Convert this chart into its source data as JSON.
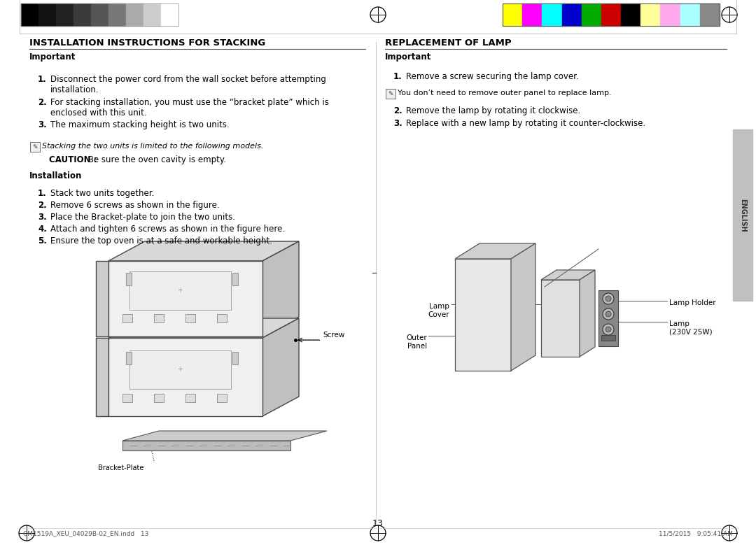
{
  "bg_color": "#ffffff",
  "page_number": "13",
  "footer_left": "CM1519A_XEU_04029B-02_EN.indd   13",
  "footer_right": "11/5/2015   9:05:41 AM",
  "left_section_title": "INSTALLATION INSTRUCTIONS FOR STACKING",
  "right_section_title": "REPLACEMENT OF LAMP",
  "left_important_label": "Important",
  "left_items": [
    "Disconnect the power cord from the wall socket before attempting\ninstallation.",
    "For stacking installation, you must use the “bracket plate” which is\nenclosed with this unit.",
    "The maximum stacking height is two units."
  ],
  "left_note": "Stacking the two units is limited to the following models.",
  "left_caution_bold": "CAUTION :",
  "left_caution_rest": " Be sure the oven cavity is empty.",
  "installation_label": "Installation",
  "install_items": [
    "Stack two units together.",
    "Remove 6 screws as shown in the figure.",
    "Place the Bracket-plate to join the two units.",
    "Attach and tighten 6 screws as shown in the figure here.",
    "Ensure the top oven is at a safe and workable height."
  ],
  "right_important_label": "Important",
  "right_item1": "Remove a screw securing the lamp cover.",
  "right_note": "You don’t need to remove outer panel to replace lamp.",
  "right_item2": "Remove the lamp by rotating it clockwise.",
  "right_item3": "Replace with a new lamp by rotating it counter-clockwise.",
  "lamp_cover_label": "Lamp\nCover",
  "lamp_holder_label": "Lamp Holder",
  "outer_panel_label": "Outer\nPanel",
  "lamp_label": "Lamp\n(230V 25W)",
  "screw_label": "Screw",
  "bracket_label": "Bracket-Plate",
  "grayscale_colors": [
    "#000000",
    "#111111",
    "#222222",
    "#3a3a3a",
    "#555555",
    "#777777",
    "#aaaaaa",
    "#cccccc",
    "#ffffff"
  ],
  "color_swatches": [
    "#ffff00",
    "#ff00ff",
    "#00ffff",
    "#0000cc",
    "#00aa00",
    "#cc0000",
    "#000000",
    "#ffff99",
    "#ffaaee",
    "#aaffff",
    "#888888"
  ],
  "sidebar_color": "#c0c0c0",
  "english_text": "ENGLISH"
}
